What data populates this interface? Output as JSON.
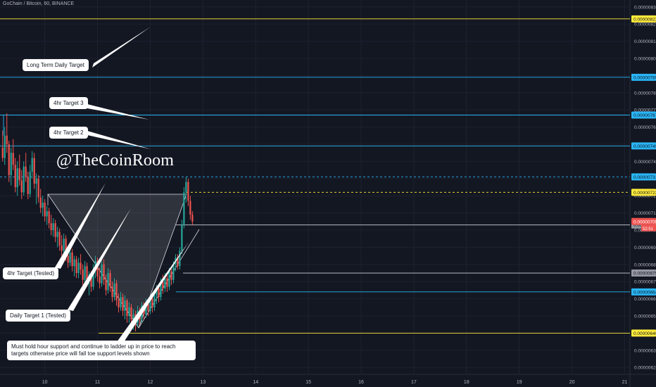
{
  "header": {
    "symbol_label": "GoChain / Bitcoin, 60, BINANCE"
  },
  "watermark": "@TheCoinRoom",
  "annotations": [
    {
      "id": "long-term-daily-target",
      "text": "Long Term Daily Target"
    },
    {
      "id": "4hr-target-3",
      "text": "4hr Target 3"
    },
    {
      "id": "4hr-target-2",
      "text": "4hr Target 2"
    },
    {
      "id": "4hr-target-tested",
      "text": "4hr Target (Tested)"
    },
    {
      "id": "daily-target-1-tested",
      "text": "Daily Target 1 (Tested)"
    },
    {
      "id": "support-note",
      "text": "Must hold hour support and continue to ladder up in price to reach targets otherwise price will fall toe support levels shown"
    }
  ],
  "colors": {
    "background": "#131722",
    "grid": "#1e2230",
    "yellow": "#ffeb3b",
    "cyan": "#29b6f6",
    "white_line": "#cfd2dc",
    "candle_up": "#26a69a",
    "candle_down": "#ef5350",
    "price_badge": "#ef5350"
  },
  "chart_data": {
    "type": "candlestick",
    "y_ticks": [
      "0.00000830",
      "0.00000820",
      "0.00000810",
      "0.00000800",
      "0.00000790",
      "0.00000780",
      "0.00000770",
      "0.00000760",
      "0.00000750",
      "0.00000740",
      "0.00000730",
      "0.00000720",
      "0.00000710",
      "0.00000700",
      "0.00000690",
      "0.00000680",
      "0.00000670",
      "0.00000660",
      "0.00000650",
      "0.00000640",
      "0.00000630",
      "0.00000620"
    ],
    "x_ticks": [
      "10",
      "11",
      "12",
      "13",
      "14",
      "15",
      "16",
      "17",
      "18",
      "19",
      "20",
      "21"
    ],
    "ylim": [
      6.16e-06,
      8.34e-06
    ],
    "xlim": [
      9.15,
      21.1
    ],
    "levels": [
      {
        "price": 8.23e-06,
        "label": "0.00000823",
        "color": "yellow",
        "dashed": false
      },
      {
        "price": 7.89e-06,
        "label": "0.00000789",
        "color": "cyan",
        "dashed": false
      },
      {
        "price": 7.67e-06,
        "label": "0.00000767",
        "color": "cyan",
        "dashed": false
      },
      {
        "price": 7.49e-06,
        "label": "0.00000749",
        "color": "cyan",
        "dashed": false
      },
      {
        "price": 7.31e-06,
        "label": "0.00000731",
        "color": "cyan",
        "dashed": true
      },
      {
        "price": 7.22e-06,
        "label": "0.00000722",
        "color": "yellow",
        "dashed": true
      },
      {
        "price": 7.03e-06,
        "label": "0.00000703",
        "color": "white_line",
        "dashed": false
      },
      {
        "price": 6.75e-06,
        "label": "0.00000675",
        "color": "white_line",
        "dashed": false
      },
      {
        "price": 6.64e-06,
        "label": "0.00000664",
        "color": "cyan",
        "dashed": false
      },
      {
        "price": 6.4e-06,
        "label": "0.00000640",
        "color": "yellow",
        "dashed": false
      }
    ],
    "current_price": "0.00000705",
    "countdown": "52:51",
    "candles": [
      {
        "x": 9.2,
        "o": 7.48e-06,
        "h": 7.58e-06,
        "l": 7.4e-06,
        "c": 7.42e-06
      },
      {
        "x": 9.24,
        "o": 7.42e-06,
        "h": 7.6e-06,
        "l": 7.38e-06,
        "c": 7.55e-06
      },
      {
        "x": 9.28,
        "o": 7.55e-06,
        "h": 7.68e-06,
        "l": 7.45e-06,
        "c": 7.5e-06
      },
      {
        "x": 9.32,
        "o": 7.5e-06,
        "h": 7.52e-06,
        "l": 7.28e-06,
        "c": 7.32e-06
      },
      {
        "x": 9.36,
        "o": 7.32e-06,
        "h": 7.48e-06,
        "l": 7.26e-06,
        "c": 7.45e-06
      },
      {
        "x": 9.4,
        "o": 7.45e-06,
        "h": 7.53e-06,
        "l": 7.35e-06,
        "c": 7.38e-06
      },
      {
        "x": 9.44,
        "o": 7.38e-06,
        "h": 7.42e-06,
        "l": 7.22e-06,
        "c": 7.25e-06
      },
      {
        "x": 9.48,
        "o": 7.25e-06,
        "h": 7.4e-06,
        "l": 7.2e-06,
        "c": 7.36e-06
      },
      {
        "x": 9.52,
        "o": 7.36e-06,
        "h": 7.44e-06,
        "l": 7.26e-06,
        "c": 7.29e-06
      },
      {
        "x": 9.56,
        "o": 7.29e-06,
        "h": 7.35e-06,
        "l": 7.18e-06,
        "c": 7.22e-06
      },
      {
        "x": 9.6,
        "o": 7.22e-06,
        "h": 7.4e-06,
        "l": 7.2e-06,
        "c": 7.37e-06
      },
      {
        "x": 9.64,
        "o": 7.37e-06,
        "h": 7.45e-06,
        "l": 7.28e-06,
        "c": 7.31e-06
      },
      {
        "x": 9.68,
        "o": 7.31e-06,
        "h": 7.34e-06,
        "l": 7.18e-06,
        "c": 7.21e-06
      },
      {
        "x": 9.72,
        "o": 7.21e-06,
        "h": 7.38e-06,
        "l": 7.19e-06,
        "c": 7.34e-06
      },
      {
        "x": 9.76,
        "o": 7.34e-06,
        "h": 7.46e-06,
        "l": 7.3e-06,
        "c": 7.42e-06
      },
      {
        "x": 9.8,
        "o": 7.42e-06,
        "h": 7.45e-06,
        "l": 7.24e-06,
        "c": 7.27e-06
      },
      {
        "x": 9.84,
        "o": 7.27e-06,
        "h": 7.33e-06,
        "l": 7.15e-06,
        "c": 7.3e-06
      },
      {
        "x": 9.88,
        "o": 7.3e-06,
        "h": 7.32e-06,
        "l": 7.16e-06,
        "c": 7.19e-06
      },
      {
        "x": 9.92,
        "o": 7.19e-06,
        "h": 7.24e-06,
        "l": 7.1e-06,
        "c": 7.13e-06
      },
      {
        "x": 9.96,
        "o": 7.13e-06,
        "h": 7.2e-06,
        "l": 7.08e-06,
        "c": 7.16e-06
      },
      {
        "x": 10.0,
        "o": 7.16e-06,
        "h": 7.18e-06,
        "l": 7.05e-06,
        "c": 7.08e-06
      },
      {
        "x": 10.04,
        "o": 7.08e-06,
        "h": 7.14e-06,
        "l": 7.03e-06,
        "c": 7.11e-06
      },
      {
        "x": 10.08,
        "o": 7.11e-06,
        "h": 7.13e-06,
        "l": 7.01e-06,
        "c": 7.04e-06
      },
      {
        "x": 10.12,
        "o": 7.04e-06,
        "h": 7.09e-06,
        "l": 6.97e-06,
        "c": 7e-06
      },
      {
        "x": 10.16,
        "o": 7e-06,
        "h": 7.07e-06,
        "l": 6.96e-06,
        "c": 7.04e-06
      },
      {
        "x": 10.2,
        "o": 7.04e-06,
        "h": 7.06e-06,
        "l": 6.93e-06,
        "c": 6.96e-06
      },
      {
        "x": 10.24,
        "o": 6.96e-06,
        "h": 7.02e-06,
        "l": 6.9e-06,
        "c": 6.99e-06
      },
      {
        "x": 10.28,
        "o": 6.99e-06,
        "h": 7.01e-06,
        "l": 6.88e-06,
        "c": 6.91e-06
      },
      {
        "x": 10.32,
        "o": 6.91e-06,
        "h": 6.97e-06,
        "l": 6.85e-06,
        "c": 6.88e-06
      },
      {
        "x": 10.36,
        "o": 6.88e-06,
        "h": 6.98e-06,
        "l": 6.85e-06,
        "c": 6.95e-06
      },
      {
        "x": 10.4,
        "o": 6.95e-06,
        "h": 6.97e-06,
        "l": 6.82e-06,
        "c": 6.85e-06
      },
      {
        "x": 10.44,
        "o": 6.85e-06,
        "h": 6.9e-06,
        "l": 6.78e-06,
        "c": 6.81e-06
      },
      {
        "x": 10.48,
        "o": 6.81e-06,
        "h": 6.9e-06,
        "l": 6.79e-06,
        "c": 6.87e-06
      },
      {
        "x": 10.52,
        "o": 6.87e-06,
        "h": 6.89e-06,
        "l": 6.76e-06,
        "c": 6.79e-06
      },
      {
        "x": 10.56,
        "o": 6.79e-06,
        "h": 6.85e-06,
        "l": 6.73e-06,
        "c": 6.83e-06
      },
      {
        "x": 10.6,
        "o": 6.83e-06,
        "h": 6.85e-06,
        "l": 6.72e-06,
        "c": 6.75e-06
      },
      {
        "x": 10.64,
        "o": 6.75e-06,
        "h": 6.84e-06,
        "l": 6.72e-06,
        "c": 6.81e-06
      },
      {
        "x": 10.68,
        "o": 6.81e-06,
        "h": 6.86e-06,
        "l": 6.74e-06,
        "c": 6.77e-06
      },
      {
        "x": 10.72,
        "o": 6.77e-06,
        "h": 6.8e-06,
        "l": 6.68e-06,
        "c": 6.71e-06
      },
      {
        "x": 10.76,
        "o": 6.71e-06,
        "h": 6.82e-06,
        "l": 6.69e-06,
        "c": 6.79e-06
      },
      {
        "x": 10.8,
        "o": 6.79e-06,
        "h": 6.81e-06,
        "l": 6.67e-06,
        "c": 6.7e-06
      },
      {
        "x": 10.84,
        "o": 6.7e-06,
        "h": 6.76e-06,
        "l": 6.62e-06,
        "c": 6.74e-06
      },
      {
        "x": 10.88,
        "o": 6.74e-06,
        "h": 6.76e-06,
        "l": 6.64e-06,
        "c": 6.67e-06
      },
      {
        "x": 10.92,
        "o": 6.67e-06,
        "h": 6.8e-06,
        "l": 6.65e-06,
        "c": 6.77e-06
      },
      {
        "x": 10.96,
        "o": 6.77e-06,
        "h": 6.85e-06,
        "l": 6.72e-06,
        "c": 6.82e-06
      },
      {
        "x": 11.0,
        "o": 6.82e-06,
        "h": 6.84e-06,
        "l": 6.7e-06,
        "c": 6.73e-06
      },
      {
        "x": 11.04,
        "o": 6.73e-06,
        "h": 6.78e-06,
        "l": 6.66e-06,
        "c": 6.69e-06
      },
      {
        "x": 11.08,
        "o": 6.69e-06,
        "h": 6.82e-06,
        "l": 6.67e-06,
        "c": 6.8e-06
      },
      {
        "x": 11.12,
        "o": 6.8e-06,
        "h": 6.83e-06,
        "l": 6.68e-06,
        "c": 6.71e-06
      },
      {
        "x": 11.16,
        "o": 6.71e-06,
        "h": 6.74e-06,
        "l": 6.62e-06,
        "c": 6.65e-06
      },
      {
        "x": 11.2,
        "o": 6.65e-06,
        "h": 6.78e-06,
        "l": 6.63e-06,
        "c": 6.75e-06
      },
      {
        "x": 11.24,
        "o": 6.75e-06,
        "h": 6.77e-06,
        "l": 6.64e-06,
        "c": 6.67e-06
      },
      {
        "x": 11.28,
        "o": 6.67e-06,
        "h": 6.7e-06,
        "l": 6.58e-06,
        "c": 6.61e-06
      },
      {
        "x": 11.32,
        "o": 6.61e-06,
        "h": 6.72e-06,
        "l": 6.59e-06,
        "c": 6.69e-06
      },
      {
        "x": 11.36,
        "o": 6.69e-06,
        "h": 6.71e-06,
        "l": 6.56e-06,
        "c": 6.59e-06
      },
      {
        "x": 11.4,
        "o": 6.59e-06,
        "h": 6.63e-06,
        "l": 6.52e-06,
        "c": 6.55e-06
      },
      {
        "x": 11.44,
        "o": 6.55e-06,
        "h": 6.64e-06,
        "l": 6.53e-06,
        "c": 6.61e-06
      },
      {
        "x": 11.48,
        "o": 6.61e-06,
        "h": 6.63e-06,
        "l": 6.5e-06,
        "c": 6.53e-06
      },
      {
        "x": 11.52,
        "o": 6.53e-06,
        "h": 6.62e-06,
        "l": 6.48e-06,
        "c": 6.59e-06
      },
      {
        "x": 11.56,
        "o": 6.59e-06,
        "h": 6.6e-06,
        "l": 6.46e-06,
        "c": 6.5e-06
      },
      {
        "x": 11.6,
        "o": 6.5e-06,
        "h": 6.58e-06,
        "l": 6.46e-06,
        "c": 6.55e-06
      },
      {
        "x": 11.64,
        "o": 6.55e-06,
        "h": 6.57e-06,
        "l": 6.44e-06,
        "c": 6.48e-06
      },
      {
        "x": 11.68,
        "o": 6.48e-06,
        "h": 6.54e-06,
        "l": 6.42e-06,
        "c": 6.51e-06
      },
      {
        "x": 11.72,
        "o": 6.51e-06,
        "h": 6.53e-06,
        "l": 6.41e-06,
        "c": 6.46e-06
      },
      {
        "x": 11.76,
        "o": 6.46e-06,
        "h": 6.56e-06,
        "l": 6.44e-06,
        "c": 6.53e-06
      },
      {
        "x": 11.8,
        "o": 6.53e-06,
        "h": 6.55e-06,
        "l": 6.45e-06,
        "c": 6.48e-06
      },
      {
        "x": 11.84,
        "o": 6.48e-06,
        "h": 6.58e-06,
        "l": 6.46e-06,
        "c": 6.56e-06
      },
      {
        "x": 11.88,
        "o": 6.56e-06,
        "h": 6.58e-06,
        "l": 6.48e-06,
        "c": 6.51e-06
      },
      {
        "x": 11.92,
        "o": 6.51e-06,
        "h": 6.6e-06,
        "l": 6.49e-06,
        "c": 6.57e-06
      },
      {
        "x": 11.96,
        "o": 6.57e-06,
        "h": 6.59e-06,
        "l": 6.5e-06,
        "c": 6.53e-06
      },
      {
        "x": 12.0,
        "o": 6.53e-06,
        "h": 6.62e-06,
        "l": 6.51e-06,
        "c": 6.6e-06
      },
      {
        "x": 12.04,
        "o": 6.6e-06,
        "h": 6.63e-06,
        "l": 6.52e-06,
        "c": 6.55e-06
      },
      {
        "x": 12.08,
        "o": 6.55e-06,
        "h": 6.64e-06,
        "l": 6.53e-06,
        "c": 6.62e-06
      },
      {
        "x": 12.12,
        "o": 6.62e-06,
        "h": 6.68e-06,
        "l": 6.57e-06,
        "c": 6.66e-06
      },
      {
        "x": 12.16,
        "o": 6.66e-06,
        "h": 6.68e-06,
        "l": 6.58e-06,
        "c": 6.61e-06
      },
      {
        "x": 12.2,
        "o": 6.61e-06,
        "h": 6.72e-06,
        "l": 6.59e-06,
        "c": 6.7e-06
      },
      {
        "x": 12.24,
        "o": 6.7e-06,
        "h": 6.74e-06,
        "l": 6.63e-06,
        "c": 6.66e-06
      },
      {
        "x": 12.28,
        "o": 6.66e-06,
        "h": 6.75e-06,
        "l": 6.64e-06,
        "c": 6.72e-06
      },
      {
        "x": 12.32,
        "o": 6.72e-06,
        "h": 6.74e-06,
        "l": 6.64e-06,
        "c": 6.67e-06
      },
      {
        "x": 12.36,
        "o": 6.67e-06,
        "h": 6.78e-06,
        "l": 6.65e-06,
        "c": 6.76e-06
      },
      {
        "x": 12.4,
        "o": 6.76e-06,
        "h": 6.78e-06,
        "l": 6.68e-06,
        "c": 6.71e-06
      },
      {
        "x": 12.44,
        "o": 6.71e-06,
        "h": 6.82e-06,
        "l": 6.69e-06,
        "c": 6.8e-06
      },
      {
        "x": 12.48,
        "o": 6.8e-06,
        "h": 6.86e-06,
        "l": 6.76e-06,
        "c": 6.84e-06
      },
      {
        "x": 12.52,
        "o": 6.84e-06,
        "h": 6.86e-06,
        "l": 6.77e-06,
        "c": 6.79e-06
      },
      {
        "x": 12.56,
        "o": 6.79e-06,
        "h": 6.9e-06,
        "l": 6.77e-06,
        "c": 6.88e-06
      },
      {
        "x": 12.6,
        "o": 6.88e-06,
        "h": 7.06e-06,
        "l": 6.86e-06,
        "c": 7.03e-06
      },
      {
        "x": 12.64,
        "o": 7.03e-06,
        "h": 7.25e-06,
        "l": 7.01e-06,
        "c": 7.22e-06
      },
      {
        "x": 12.68,
        "o": 7.22e-06,
        "h": 7.31e-06,
        "l": 7.16e-06,
        "c": 7.28e-06
      },
      {
        "x": 12.72,
        "o": 7.28e-06,
        "h": 7.3e-06,
        "l": 7.14e-06,
        "c": 7.17e-06
      },
      {
        "x": 12.76,
        "o": 7.17e-06,
        "h": 7.2e-06,
        "l": 7.06e-06,
        "c": 7.09e-06
      },
      {
        "x": 12.8,
        "o": 7.09e-06,
        "h": 7.11e-06,
        "l": 7.03e-06,
        "c": 7.05e-06
      }
    ]
  }
}
